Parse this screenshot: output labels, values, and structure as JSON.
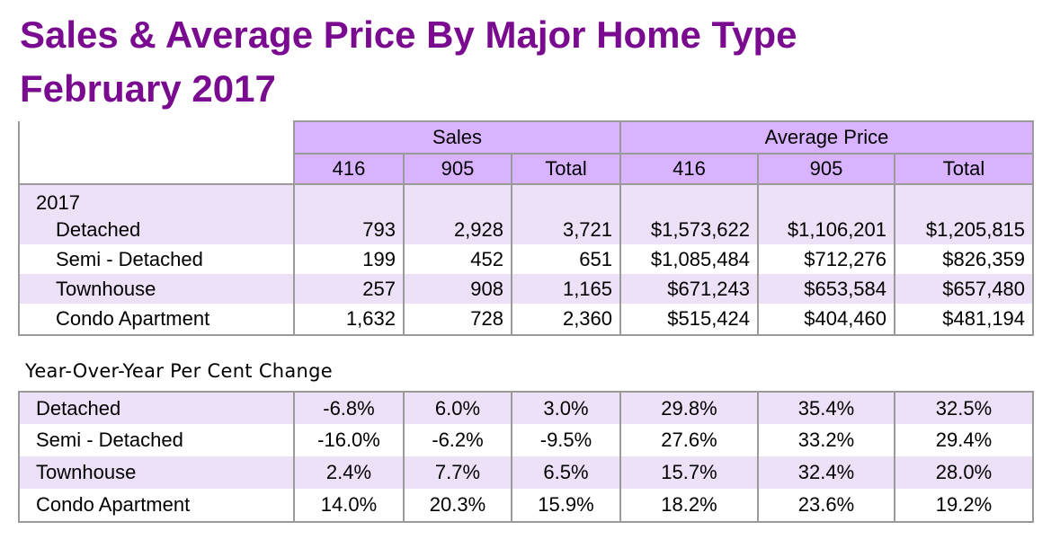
{
  "title_line1": "Sales & Average Price By Major Home Type",
  "title_line2": "February 2017",
  "header": {
    "sales": "Sales",
    "average_price": "Average Price",
    "columns": [
      "416",
      "905",
      "Total",
      "416",
      "905",
      "Total"
    ]
  },
  "year_label": "2017",
  "rows_2017": [
    {
      "type": "Detached",
      "values": [
        "793",
        "2,928",
        "3,721",
        "$1,573,622",
        "$1,106,201",
        "$1,205,815"
      ]
    },
    {
      "type": "Semi - Detached",
      "values": [
        "199",
        "452",
        "651",
        "$1,085,484",
        "$712,276",
        "$826,359"
      ]
    },
    {
      "type": "Townhouse",
      "values": [
        "257",
        "908",
        "1,165",
        "$671,243",
        "$653,584",
        "$657,480"
      ]
    },
    {
      "type": "Condo Apartment",
      "values": [
        "1,632",
        "728",
        "2,360",
        "$515,424",
        "$404,460",
        "$481,194"
      ]
    }
  ],
  "yoy_title": "Year-Over-Year Per Cent Change",
  "rows_yoy": [
    {
      "type": "Detached",
      "values": [
        "-6.8%",
        "6.0%",
        "3.0%",
        "29.8%",
        "35.4%",
        "32.5%"
      ]
    },
    {
      "type": "Semi - Detached",
      "values": [
        "-16.0%",
        "-6.2%",
        "-9.5%",
        "27.6%",
        "33.2%",
        "29.4%"
      ]
    },
    {
      "type": "Townhouse",
      "values": [
        "2.4%",
        "7.7%",
        "6.5%",
        "15.7%",
        "32.4%",
        "28.0%"
      ]
    },
    {
      "type": "Condo Apartment",
      "values": [
        "14.0%",
        "20.3%",
        "15.9%",
        "18.2%",
        "23.6%",
        "19.2%"
      ]
    }
  ]
}
